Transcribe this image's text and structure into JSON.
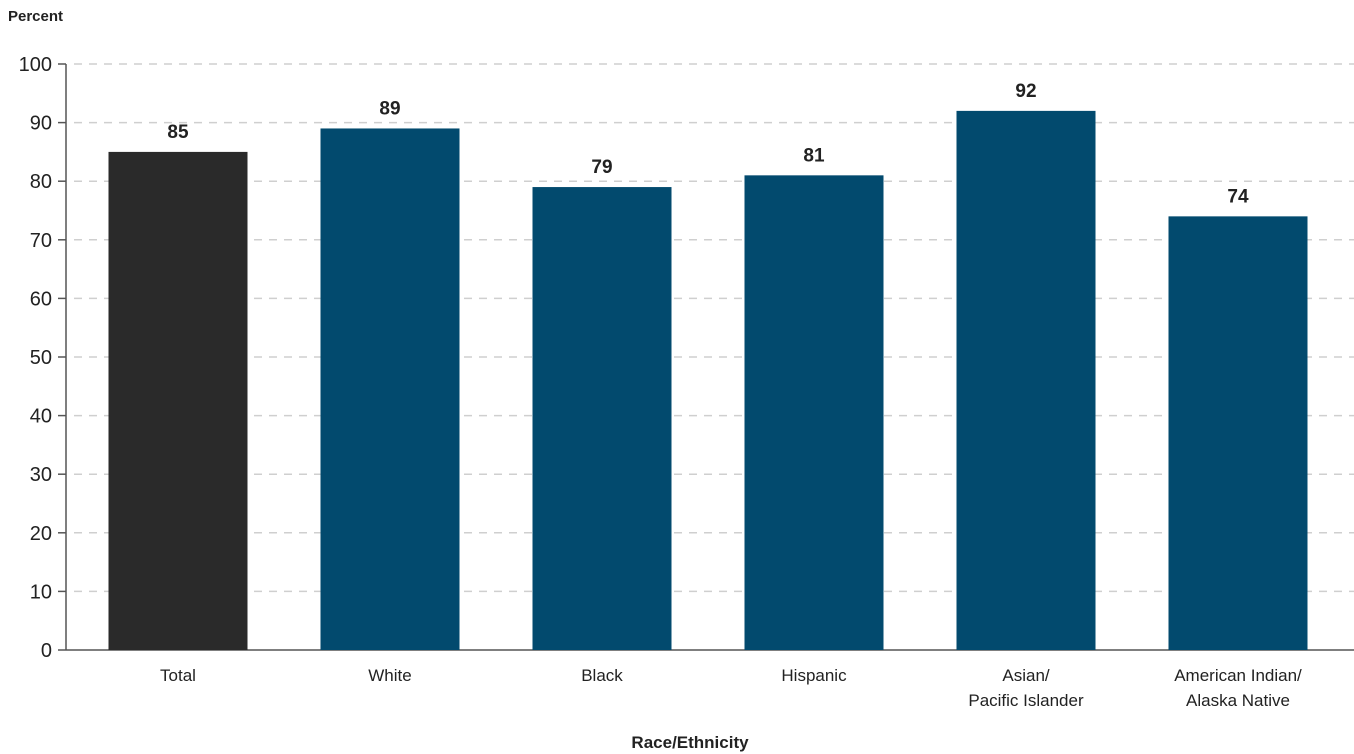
{
  "chart_data": {
    "type": "bar",
    "ylabel": "Percent",
    "xlabel": "Race/Ethnicity",
    "categories": [
      [
        "Total"
      ],
      [
        "White"
      ],
      [
        "Black"
      ],
      [
        "Hispanic"
      ],
      [
        "Asian/",
        "Pacific Islander"
      ],
      [
        "American Indian/",
        "Alaska Native"
      ]
    ],
    "values": [
      85,
      89,
      79,
      81,
      92,
      74
    ],
    "value_labels": [
      "85",
      "89",
      "79",
      "81",
      "92",
      "74"
    ],
    "ylim": [
      0,
      100
    ],
    "yticks": [
      0,
      10,
      20,
      30,
      40,
      50,
      60,
      70,
      80,
      90,
      100
    ],
    "ytick_labels": [
      "0",
      "10",
      "20",
      "30",
      "40",
      "50",
      "60",
      "70",
      "80",
      "90",
      "100"
    ],
    "grid": true,
    "bar_colors": [
      "#2a2a2a",
      "#024a6e",
      "#024a6e",
      "#024a6e",
      "#024a6e",
      "#024a6e"
    ],
    "grid_color": "#cfcfcf",
    "axis_color": "#555555"
  }
}
